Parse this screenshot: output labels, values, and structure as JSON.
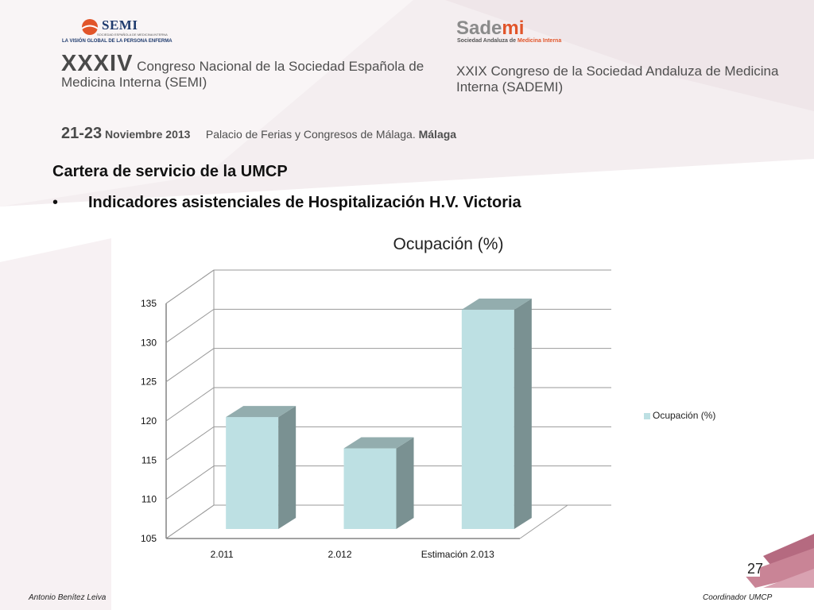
{
  "header": {
    "semi_logo_text": "SEMI",
    "semi_logo_small": "SOCIEDAD ESPAÑOLA DE MEDICINA INTERNA",
    "semi_logo_tagline": "LA VISIÓN GLOBAL DE LA PERSONA ENFERMA",
    "sademi_logo_prefix": "Sade",
    "sademi_logo_suffix": "mi",
    "sademi_tagline_prefix": "Sociedad Andaluza de ",
    "sademi_tagline_suffix": "Medicina Interna",
    "semi_congress_number": "XXXIV",
    "semi_congress_text": " Congreso Nacional de la Sociedad Española de Medicina Interna (SEMI)",
    "sademi_congress_text": "XXIX Congreso de la Sociedad Andaluza de Medicina Interna (SADEMI)",
    "dates": "21-23",
    "dates_month": " Noviembre 2013",
    "venue": "Palacio de Ferias y Congresos de Málaga. ",
    "venue_city": "Málaga"
  },
  "slide": {
    "heading": "Cartera de servicio de la UMCP",
    "bullet_symbol": "•",
    "bullet_text": "Indicadores asistenciales de Hospitalización H.V. Victoria",
    "page_number": "27"
  },
  "footer": {
    "left": "Antonio Benítez Leiva",
    "right": "Coordinador UMCP"
  },
  "colors": {
    "bar_front": "#bde0e3",
    "bar_top": "#93adae",
    "bar_side": "#7a9192",
    "grid": "#9a9a9a"
  },
  "chart_data": {
    "type": "bar",
    "title": "Ocupación (%)",
    "categories": [
      "2.011",
      "2.012",
      "Estimación 2.013"
    ],
    "series": [
      {
        "name": "Ocupación (%)",
        "values": [
          120.5,
          116.5,
          134.2
        ]
      }
    ],
    "ylim": [
      105,
      135
    ],
    "yticks": [
      "105",
      "110",
      "115",
      "120",
      "125",
      "130",
      "135"
    ],
    "grid": true,
    "legend": "right",
    "style": "3d"
  }
}
